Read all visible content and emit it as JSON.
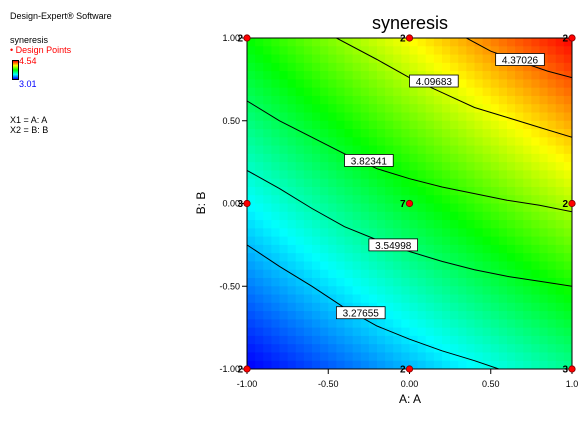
{
  "software": "Design-Expert® Software",
  "legend": {
    "response": "syneresis",
    "design_points_label": "• Design Points",
    "scale_high": "4.54",
    "scale_low": "3.01",
    "scale_high_color": "#ff0000",
    "scale_low_color": "#0000ff",
    "factor_lines": [
      "X1 = A: A",
      "X2 = B: B"
    ]
  },
  "chart_data": {
    "type": "heatmap",
    "title": "syneresis",
    "xlabel": "A: A",
    "ylabel": "B: B",
    "xlim": [
      -1.0,
      1.0
    ],
    "ylim": [
      -1.0,
      1.0
    ],
    "x_ticks": [
      "-1.00",
      "-0.50",
      "0.00",
      "0.50",
      "1.0"
    ],
    "y_ticks": [
      "1.00",
      "0.50",
      "0.00",
      "-0.50",
      "-1.00"
    ],
    "x_tick_values": [
      -1.0,
      -0.5,
      0.0,
      0.5,
      1.0
    ],
    "y_tick_values": [
      1.0,
      0.5,
      0.0,
      -0.5,
      -1.0
    ],
    "color_range": [
      3.01,
      4.54
    ],
    "colormap": [
      "#0000ff",
      "#00ffff",
      "#00ff00",
      "#ffff00",
      "#ff0000"
    ],
    "grid": false,
    "contours": [
      {
        "value": 3.27655,
        "label": "3.27655",
        "points": [
          [
            -1.0,
            -0.25
          ],
          [
            -0.8,
            -0.38
          ],
          [
            -0.6,
            -0.5
          ],
          [
            -0.4,
            -0.63
          ],
          [
            -0.2,
            -0.74
          ],
          [
            0.0,
            -0.82
          ],
          [
            0.2,
            -0.89
          ],
          [
            0.4,
            -0.95
          ],
          [
            0.55,
            -1.0
          ]
        ],
        "label_at": [
          -0.3,
          -0.66
        ]
      },
      {
        "value": 3.54998,
        "label": "3.54998",
        "points": [
          [
            -1.0,
            0.2
          ],
          [
            -0.8,
            0.09
          ],
          [
            -0.6,
            -0.03
          ],
          [
            -0.4,
            -0.14
          ],
          [
            -0.2,
            -0.22
          ],
          [
            0.0,
            -0.29
          ],
          [
            0.2,
            -0.35
          ],
          [
            0.4,
            -0.4
          ],
          [
            0.6,
            -0.44
          ],
          [
            0.8,
            -0.47
          ],
          [
            1.0,
            -0.5
          ]
        ],
        "label_at": [
          -0.1,
          -0.25
        ]
      },
      {
        "value": 3.82341,
        "label": "3.82341",
        "points": [
          [
            -1.0,
            0.62
          ],
          [
            -0.8,
            0.5
          ],
          [
            -0.6,
            0.4
          ],
          [
            -0.4,
            0.3
          ],
          [
            -0.2,
            0.21
          ],
          [
            0.0,
            0.15
          ],
          [
            0.2,
            0.1
          ],
          [
            0.4,
            0.06
          ],
          [
            0.6,
            0.02
          ],
          [
            0.8,
            -0.01
          ],
          [
            1.0,
            -0.05
          ]
        ],
        "label_at": [
          -0.25,
          0.26
        ]
      },
      {
        "value": 4.09683,
        "label": "4.09683",
        "points": [
          [
            -0.45,
            1.0
          ],
          [
            -0.2,
            0.87
          ],
          [
            0.0,
            0.76
          ],
          [
            0.2,
            0.67
          ],
          [
            0.4,
            0.58
          ],
          [
            0.6,
            0.52
          ],
          [
            0.8,
            0.46
          ],
          [
            1.0,
            0.4
          ]
        ],
        "label_at": [
          0.15,
          0.74
        ]
      },
      {
        "value": 4.37026,
        "label": "4.37026",
        "points": [
          [
            0.35,
            1.0
          ],
          [
            0.5,
            0.92
          ],
          [
            0.7,
            0.85
          ],
          [
            0.85,
            0.8
          ],
          [
            1.0,
            0.76
          ]
        ],
        "label_at": [
          0.68,
          0.87
        ]
      }
    ],
    "design_points": [
      {
        "x": -1.0,
        "y": 1.0,
        "label": "2"
      },
      {
        "x": 0.0,
        "y": 1.0,
        "label": "2"
      },
      {
        "x": 1.0,
        "y": 1.0,
        "label": "2"
      },
      {
        "x": -1.0,
        "y": 0.0,
        "label": "3"
      },
      {
        "x": 0.0,
        "y": 0.0,
        "label": "7"
      },
      {
        "x": 1.0,
        "y": 0.0,
        "label": "2"
      },
      {
        "x": -1.0,
        "y": -1.0,
        "label": "2"
      },
      {
        "x": 0.0,
        "y": -1.0,
        "label": "2"
      },
      {
        "x": 1.0,
        "y": -1.0,
        "label": "3"
      }
    ]
  }
}
